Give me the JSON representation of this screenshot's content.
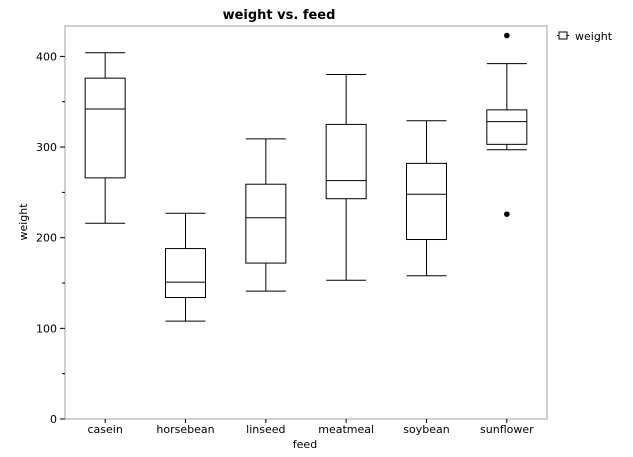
{
  "chart_data": {
    "type": "box",
    "title": "weight vs. feed",
    "xlabel": "feed",
    "ylabel": "weight",
    "ylim": [
      0,
      430
    ],
    "yticks": [
      0,
      100,
      200,
      300,
      400
    ],
    "grid": false,
    "legend_position": "top-right",
    "legend": [
      "weight"
    ],
    "categories": [
      "casein",
      "horsebean",
      "linseed",
      "meatmeal",
      "soybean",
      "sunflower"
    ],
    "boxes": [
      {
        "category": "casein",
        "whisker_low": 216,
        "q1": 266,
        "median": 342,
        "q3": 376,
        "whisker_high": 404,
        "outliers": []
      },
      {
        "category": "horsebean",
        "whisker_low": 108,
        "q1": 134,
        "median": 151,
        "q3": 188,
        "whisker_high": 227,
        "outliers": []
      },
      {
        "category": "linseed",
        "whisker_low": 141,
        "q1": 172,
        "median": 222,
        "q3": 259,
        "whisker_high": 309,
        "outliers": []
      },
      {
        "category": "meatmeal",
        "whisker_low": 153,
        "q1": 243,
        "median": 263,
        "q3": 325,
        "whisker_high": 380,
        "outliers": []
      },
      {
        "category": "soybean",
        "whisker_low": 158,
        "q1": 198,
        "median": 248,
        "q3": 282,
        "whisker_high": 329,
        "outliers": []
      },
      {
        "category": "sunflower",
        "whisker_low": 297,
        "q1": 303,
        "median": 328,
        "q3": 341,
        "whisker_high": 392,
        "outliers": [
          423,
          226
        ]
      }
    ]
  }
}
